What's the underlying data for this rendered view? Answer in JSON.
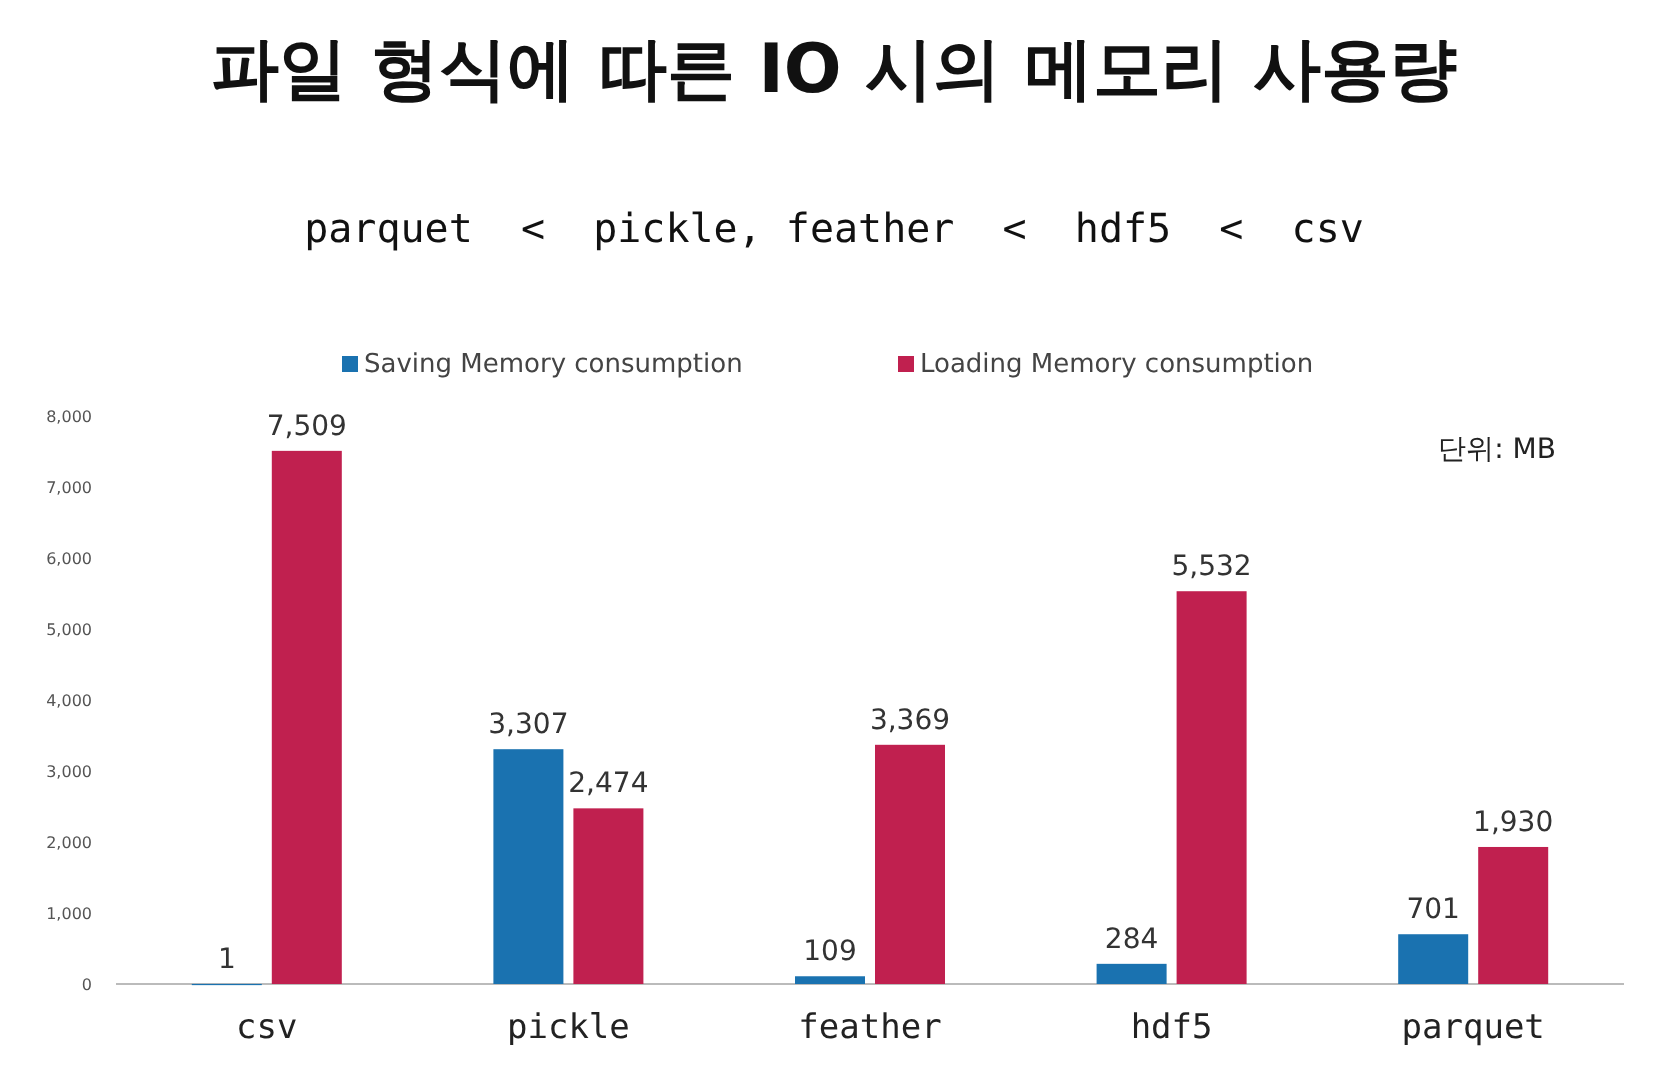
{
  "chart_data": {
    "type": "bar",
    "title": "파일 형식에 따른 IO 시의 메모리 사용량",
    "subtitle": "parquet  <  pickle, feather  <  hdf5  <  csv",
    "categories": [
      "csv",
      "pickle",
      "feather",
      "hdf5",
      "parquet"
    ],
    "series": [
      {
        "name": "Saving Memory consumption",
        "color": "#1a72b0",
        "values": [
          1,
          3307,
          109,
          284,
          701
        ],
        "value_labels": [
          "1",
          "3,307",
          "109",
          "284",
          "701"
        ]
      },
      {
        "name": "Loading Memory consumption",
        "color": "#c0204f",
        "values": [
          7509,
          2474,
          3369,
          5532,
          1930
        ],
        "value_labels": [
          "7,509",
          "2,474",
          "3,369",
          "5,532",
          "1,930"
        ]
      }
    ],
    "ylim": [
      0,
      8000
    ],
    "yticks": [
      0,
      {
        "value": 1000,
        "label": "1,000"
      },
      {
        "value": 2000,
        "label": "2,000"
      },
      {
        "value": 3000,
        "label": "3,000"
      },
      {
        "value": 4000,
        "label": "4,000"
      },
      {
        "value": 5000,
        "label": "5,000"
      },
      {
        "value": 6000,
        "label": "6,000"
      },
      {
        "value": 7000,
        "label": "7,000"
      },
      {
        "value": 8000,
        "label": "8,000"
      }
    ],
    "legend": "top",
    "grid": false,
    "annotations": [
      "단위: MB"
    ]
  }
}
